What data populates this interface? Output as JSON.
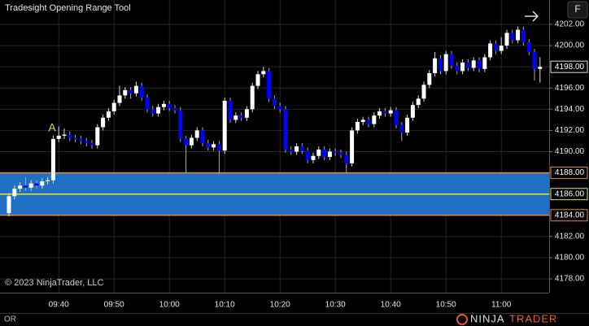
{
  "chart_data": {
    "type": "candlestick",
    "title": "Tradesight Opening Range Tool",
    "copyright": "© 2023 NinjaTrader, LLC",
    "annotation": "A",
    "status": "OR",
    "logo": [
      "NINJA",
      "TRADER"
    ],
    "button": "F",
    "up_color": "#ffffff",
    "down_color": "#0000ff",
    "grid": true,
    "categories": [
      null,
      null,
      null,
      null,
      null,
      null,
      null,
      null,
      null,
      "09:40",
      null,
      null,
      null,
      null,
      null,
      null,
      null,
      null,
      null,
      "09:50",
      null,
      null,
      null,
      null,
      null,
      null,
      null,
      null,
      null,
      "10:00",
      null,
      null,
      null,
      null,
      null,
      null,
      null,
      null,
      null,
      "10:10",
      null,
      null,
      null,
      null,
      null,
      null,
      null,
      null,
      null,
      "10:20",
      null,
      null,
      null,
      null,
      null,
      null,
      null,
      null,
      null,
      "10:30",
      null,
      null,
      null,
      null,
      null,
      null,
      null,
      null,
      null,
      "10:40",
      null,
      null,
      null,
      null,
      null,
      null,
      null,
      null,
      null,
      "10:50",
      null,
      null,
      null,
      null,
      null,
      null,
      null,
      null,
      null,
      "11:00",
      null,
      null,
      null,
      null,
      null,
      null,
      null
    ],
    "open": [
      4184.2,
      4185.8,
      4186.5,
      4186.8,
      4186.6,
      4187,
      4186.8,
      4187.2,
      4187.3,
      4191.2,
      4191.5,
      4191.6,
      4191.3,
      4191.2,
      4191.0,
      4190.8,
      4190.6,
      4192.3,
      4193.2,
      4193.8,
      4194.6,
      4195.3,
      4195.8,
      4195.5,
      4196.2,
      4195.1,
      4194.0,
      4193.6,
      4194.2,
      4194.5,
      4194.1,
      4193.9,
      4191.2,
      4190.6,
      4191.3,
      4192.0,
      4190.8,
      4190.4,
      4190.7,
      4190.1,
      4194.8,
      4193.0,
      4193.4,
      4193.2,
      4194.0,
      4196.2,
      4197.3,
      4197.6,
      4195.0,
      4194.3,
      4194.0,
      4190.2,
      4190.0,
      4190.5,
      4190.1,
      4189.2,
      4189.6,
      4190.2,
      4189.5,
      4190.0,
      4189.9,
      4189.7,
      4188.9,
      4192.0,
      4192.8,
      4193.0,
      4192.6,
      4193.4,
      4193.8,
      4193.6,
      4193.9,
      4192.5,
      4191.8,
      4193.2,
      4194.4,
      4195.0,
      4196.3,
      4197.4,
      4198.8,
      4197.6,
      4199.2,
      4198.1,
      4197.6,
      4198.4,
      4197.9,
      4198.6,
      4197.8,
      4198.9,
      4200.2,
      4199.5,
      4200.0,
      4201.2,
      4200.5,
      4201.5,
      4200.3,
      4199.4,
      4197.8
    ],
    "high": [
      4186.1,
      4186.8,
      4187.1,
      4187.6,
      4187.3,
      4187.3,
      4187.5,
      4187.6,
      4191.5,
      4192.4,
      4192.2,
      4191.9,
      4191.6,
      4191.5,
      4191.3,
      4191.1,
      4192.6,
      4193.5,
      4194.1,
      4194.9,
      4196.2,
      4196.1,
      4196.1,
      4196.6,
      4196.5,
      4195.4,
      4194.3,
      4194.5,
      4194.8,
      4194.8,
      4194.4,
      4194.2,
      4191.5,
      4191.6,
      4192.3,
      4192.3,
      4191.1,
      4191.0,
      4191.0,
      4195.1,
      4195.1,
      4193.7,
      4193.7,
      4194.3,
      4196.5,
      4197.6,
      4198.0,
      4197.9,
      4195.3,
      4194.6,
      4194.3,
      4190.5,
      4190.8,
      4190.8,
      4190.4,
      4189.9,
      4190.5,
      4190.5,
      4190.3,
      4190.3,
      4190.2,
      4190.0,
      4192.3,
      4193.1,
      4193.3,
      4193.3,
      4193.7,
      4194.1,
      4194.1,
      4194.2,
      4194.2,
      4192.8,
      4193.5,
      4194.7,
      4195.3,
      4196.6,
      4197.7,
      4199.4,
      4199.1,
      4199.5,
      4199.5,
      4198.4,
      4198.7,
      4198.7,
      4198.9,
      4198.9,
      4199.2,
      4200.5,
      4200.5,
      4200.8,
      4201.5,
      4201.5,
      4201.8,
      4201.8,
      4200.6,
      4199.7,
      4198.9
    ],
    "low": [
      4183.9,
      4185.5,
      4186.2,
      4186.3,
      4186.3,
      4186.5,
      4186.5,
      4186.9,
      4187.0,
      4190.9,
      4191.2,
      4191.0,
      4190.9,
      4190.7,
      4190.5,
      4190.3,
      4190.3,
      4192.0,
      4192.9,
      4193.5,
      4194.3,
      4195.0,
      4195.0,
      4195.2,
      4194.8,
      4193.7,
      4193.3,
      4193.3,
      4193.9,
      4193.8,
      4193.6,
      4190.9,
      4188.0,
      4190.3,
      4191.0,
      4190.5,
      4190.1,
      4190.1,
      4187.9,
      4189.8,
      4192.7,
      4192.7,
      4192.9,
      4192.9,
      4193.7,
      4195.9,
      4197.0,
      4194.7,
      4194.0,
      4193.7,
      4189.9,
      4189.7,
      4189.7,
      4189.8,
      4188.9,
      4188.9,
      4189.3,
      4189.2,
      4189.2,
      4189.6,
      4189.4,
      4188.0,
      4188.6,
      4191.7,
      4192.5,
      4192.3,
      4192.3,
      4193.1,
      4193.3,
      4193.3,
      4192.2,
      4191.0,
      4191.5,
      4192.9,
      4194.1,
      4194.7,
      4196.0,
      4197.1,
      4197.3,
      4197.3,
      4197.8,
      4197.3,
      4197.3,
      4197.6,
      4197.6,
      4197.5,
      4197.5,
      4198.6,
      4199.2,
      4199.2,
      4199.7,
      4200.2,
      4200.2,
      4200.0,
      4199.1,
      4196.7,
      4196.5
    ],
    "close": [
      4185.8,
      4186.5,
      4186.8,
      4186.6,
      4187,
      4186.8,
      4187.2,
      4187.3,
      4191.2,
      4191.5,
      4191.6,
      4191.3,
      4191.2,
      4191.0,
      4190.8,
      4190.6,
      4192.3,
      4193.2,
      4193.8,
      4194.6,
      4195.3,
      4195.8,
      4195.5,
      4196.2,
      4195.1,
      4194.0,
      4193.6,
      4194.2,
      4194.5,
      4194.1,
      4193.9,
      4191.2,
      4190.6,
      4191.3,
      4192.0,
      4190.8,
      4190.4,
      4190.7,
      4190.1,
      4194.8,
      4193.0,
      4193.4,
      4193.2,
      4194.0,
      4196.2,
      4197.3,
      4197.6,
      4195.0,
      4194.3,
      4194.0,
      4190.2,
      4190.0,
      4190.5,
      4190.1,
      4189.2,
      4189.6,
      4190.2,
      4189.5,
      4190.0,
      4189.9,
      4189.7,
      4188.9,
      4192.0,
      4192.8,
      4193.0,
      4192.6,
      4193.4,
      4193.8,
      4193.6,
      4193.9,
      4192.5,
      4191.8,
      4193.2,
      4194.4,
      4195.0,
      4196.3,
      4197.4,
      4198.8,
      4197.6,
      4199.2,
      4198.1,
      4197.6,
      4198.4,
      4197.9,
      4198.6,
      4197.8,
      4198.9,
      4200.2,
      4199.5,
      4200.0,
      4201.2,
      4200.5,
      4201.5,
      4200.3,
      4199.4,
      4197.8,
      4198.0
    ],
    "ylim": [
      4176.7,
      4204.3
    ],
    "yticks": [
      {
        "value": 4178,
        "label": "4178.00"
      },
      {
        "value": 4180,
        "label": "4180.00"
      },
      {
        "value": 4182,
        "label": "4182.00"
      },
      {
        "value": 4184,
        "label": "4184.00"
      },
      {
        "value": 4186,
        "label": "4186.00"
      },
      {
        "value": 4188,
        "label": "4188.00"
      },
      {
        "value": 4190,
        "label": "4190.00"
      },
      {
        "value": 4192,
        "label": "4192.00"
      },
      {
        "value": 4194,
        "label": "4194.00"
      },
      {
        "value": 4196,
        "label": "4196.00"
      },
      {
        "value": 4198,
        "label": "4198.00"
      },
      {
        "value": 4200,
        "label": "4200.00"
      },
      {
        "value": 4202,
        "label": "4202.00"
      }
    ],
    "opening_range": {
      "fill": "#1f6fc4",
      "edge_color": "#e08a3c",
      "mid_color": "#e8e832",
      "high": {
        "value": 4188,
        "label": "4188.00"
      },
      "mid": {
        "value": 4186,
        "label": "4186.00"
      },
      "low": {
        "value": 4184,
        "label": "4184.00"
      }
    },
    "last_price": {
      "value": 4198,
      "label": "4198.00"
    }
  }
}
